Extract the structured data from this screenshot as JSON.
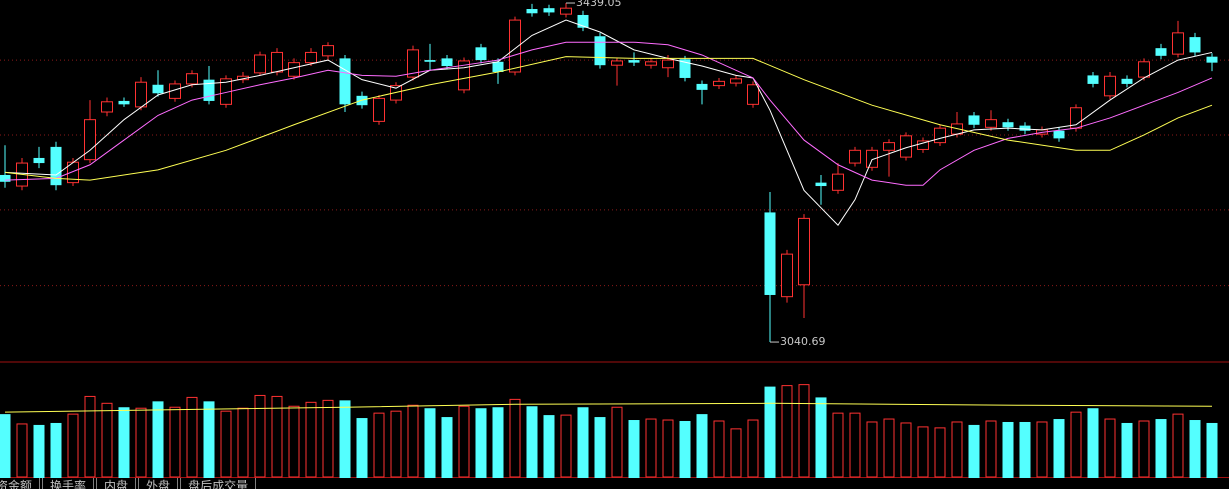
{
  "chart_data": {
    "type": "candlestick",
    "open": [
      3237,
      3224,
      3257,
      3270,
      3228,
      3255,
      3311,
      3324,
      3317,
      3343,
      3327,
      3344,
      3349,
      3320,
      3349,
      3357,
      3358,
      3353,
      3369,
      3377,
      3374,
      3330,
      3300,
      3325,
      3352,
      3372,
      3374,
      3337,
      3387,
      3370,
      3358,
      3432,
      3433,
      3426,
      3425,
      3400,
      3366,
      3372,
      3366,
      3363,
      3373,
      3344,
      3342,
      3345,
      3320,
      3193,
      3094,
      3108,
      3228,
      3219,
      3251,
      3246,
      3266,
      3258,
      3267,
      3275,
      3285,
      3307,
      3293,
      3299,
      3295,
      3285,
      3289,
      3292,
      3354,
      3330,
      3350,
      3352,
      3386,
      3379,
      3399,
      3376
    ],
    "high": [
      3272,
      3257,
      3270,
      3276,
      3257,
      3325,
      3328,
      3328,
      3352,
      3360,
      3348,
      3360,
      3365,
      3354,
      3358,
      3382,
      3386,
      3374,
      3386,
      3393,
      3378,
      3335,
      3331,
      3346,
      3389,
      3391,
      3378,
      3375,
      3391,
      3374,
      3423,
      3438,
      3437,
      3439.05,
      3430,
      3404,
      3375,
      3381,
      3374,
      3378,
      3377,
      3348,
      3351,
      3354,
      3347,
      3217,
      3149,
      3191,
      3237,
      3251,
      3270,
      3270,
      3279,
      3287,
      3281,
      3296,
      3311,
      3311,
      3313,
      3303,
      3299,
      3294,
      3293,
      3320,
      3358,
      3358,
      3354,
      3374,
      3391,
      3418,
      3404,
      3380
    ],
    "low": [
      3222,
      3219,
      3245,
      3219,
      3224,
      3251,
      3306,
      3317,
      3313,
      3329,
      3323,
      3340,
      3320,
      3316,
      3345,
      3354,
      3354,
      3349,
      3365,
      3372,
      3311,
      3315,
      3296,
      3321,
      3348,
      3360,
      3361,
      3333,
      3368,
      3344,
      3354,
      3423,
      3424,
      3422,
      3406,
      3362,
      3342,
      3365,
      3362,
      3352,
      3347,
      3320,
      3338,
      3341,
      3316,
      3040.69,
      3087,
      3069,
      3202,
      3215,
      3247,
      3242,
      3235,
      3254,
      3263,
      3271,
      3281,
      3292,
      3289,
      3289,
      3285,
      3281,
      3276,
      3288,
      3340,
      3326,
      3340,
      3348,
      3373,
      3375,
      3377,
      3359
    ],
    "close": [
      3229,
      3251,
      3251,
      3225,
      3252,
      3302,
      3323,
      3320,
      3346,
      3333,
      3344,
      3356,
      3324,
      3350,
      3353,
      3378,
      3381,
      3369,
      3381,
      3389,
      3320,
      3319,
      3327,
      3342,
      3384,
      3370,
      3365,
      3371,
      3372,
      3358,
      3419,
      3427,
      3428,
      3433,
      3410,
      3366,
      3371,
      3369,
      3370,
      3372,
      3351,
      3337,
      3347,
      3350,
      3343,
      3096,
      3144,
      3186,
      3224,
      3238,
      3266,
      3266,
      3275,
      3283,
      3277,
      3292,
      3297,
      3296,
      3302,
      3293,
      3289,
      3290,
      3280,
      3316,
      3344,
      3353,
      3344,
      3370,
      3377,
      3404,
      3381,
      3369
    ],
    "volume": [
      65,
      55,
      54,
      56,
      65,
      83,
      76,
      72,
      71,
      78,
      72,
      82,
      78,
      68,
      71,
      84,
      83,
      73,
      77,
      79,
      79,
      61,
      66,
      68,
      74,
      71,
      62,
      73,
      71,
      72,
      80,
      73,
      64,
      64,
      72,
      62,
      72,
      59,
      60,
      59,
      58,
      65,
      58,
      50,
      59,
      93,
      94,
      95,
      82,
      66,
      66,
      57,
      60,
      56,
      52,
      51,
      57,
      54,
      58,
      57,
      57,
      57,
      60,
      67,
      71,
      60,
      56,
      58,
      60,
      65,
      59,
      56
    ],
    "ylim": [
      3019.6,
      3442.6
    ],
    "ygrid": [
      3107,
      3196,
      3284,
      3372
    ],
    "volume_ylim": [
      0,
      116
    ],
    "up_color": "#ff3232",
    "down_color": "#54ffff",
    "grid_color": "#8c1a1a",
    "ma_lines": [
      {
        "color": "#ffffff",
        "x": [
          0,
          3,
          5,
          7,
          9,
          11,
          13,
          15,
          17,
          19,
          21,
          23,
          25,
          27,
          29,
          31,
          33,
          35,
          37,
          39,
          41,
          43,
          44,
          45,
          47,
          49,
          50,
          51,
          53,
          55,
          57,
          59,
          61,
          63,
          65,
          67,
          69,
          71
        ],
        "values": [
          3240,
          3237,
          3266,
          3302,
          3331,
          3343,
          3346,
          3354,
          3363,
          3372,
          3349,
          3339,
          3360,
          3363,
          3370,
          3401,
          3419,
          3405,
          3384,
          3374,
          3365,
          3354,
          3351,
          3313,
          3219,
          3178,
          3208,
          3255,
          3269,
          3280,
          3290,
          3292,
          3290,
          3296,
          3325,
          3351,
          3372,
          3381
        ]
      },
      {
        "color": "#ff6cff",
        "x": [
          0,
          3,
          5,
          7,
          9,
          11,
          13,
          15,
          17,
          19,
          21,
          23,
          25,
          27,
          29,
          31,
          33,
          35,
          37,
          39,
          41,
          43,
          44,
          45,
          47,
          49,
          51,
          53,
          54,
          55,
          57,
          59,
          61,
          63,
          65,
          67,
          69,
          71
        ],
        "values": [
          3231,
          3233,
          3249,
          3278,
          3307,
          3325,
          3334,
          3343,
          3351,
          3360,
          3354,
          3353,
          3360,
          3366,
          3372,
          3384,
          3393,
          3393,
          3393,
          3390,
          3378,
          3360,
          3351,
          3325,
          3278,
          3249,
          3231,
          3225,
          3225,
          3243,
          3266,
          3280,
          3287,
          3292,
          3304,
          3319,
          3334,
          3351
        ]
      },
      {
        "color": "#ffff54",
        "x": [
          0,
          3,
          5,
          9,
          13,
          17,
          21,
          25,
          29,
          33,
          37,
          41,
          44,
          47,
          51,
          55,
          59,
          63,
          65,
          67,
          69,
          71
        ],
        "values": [
          3240,
          3233,
          3231,
          3243,
          3266,
          3296,
          3325,
          3343,
          3358,
          3376,
          3374,
          3374,
          3374,
          3349,
          3319,
          3296,
          3278,
          3266,
          3266,
          3284,
          3304,
          3319
        ]
      }
    ],
    "volume_ma": {
      "color": "#ffff54",
      "x": [
        0,
        20,
        30,
        45,
        60,
        71
      ],
      "values": [
        67,
        72,
        75,
        76,
        74,
        73
      ]
    },
    "tabs": [
      "资金额",
      "换手率",
      "内盘",
      "外盘",
      "盘后成交量"
    ]
  }
}
